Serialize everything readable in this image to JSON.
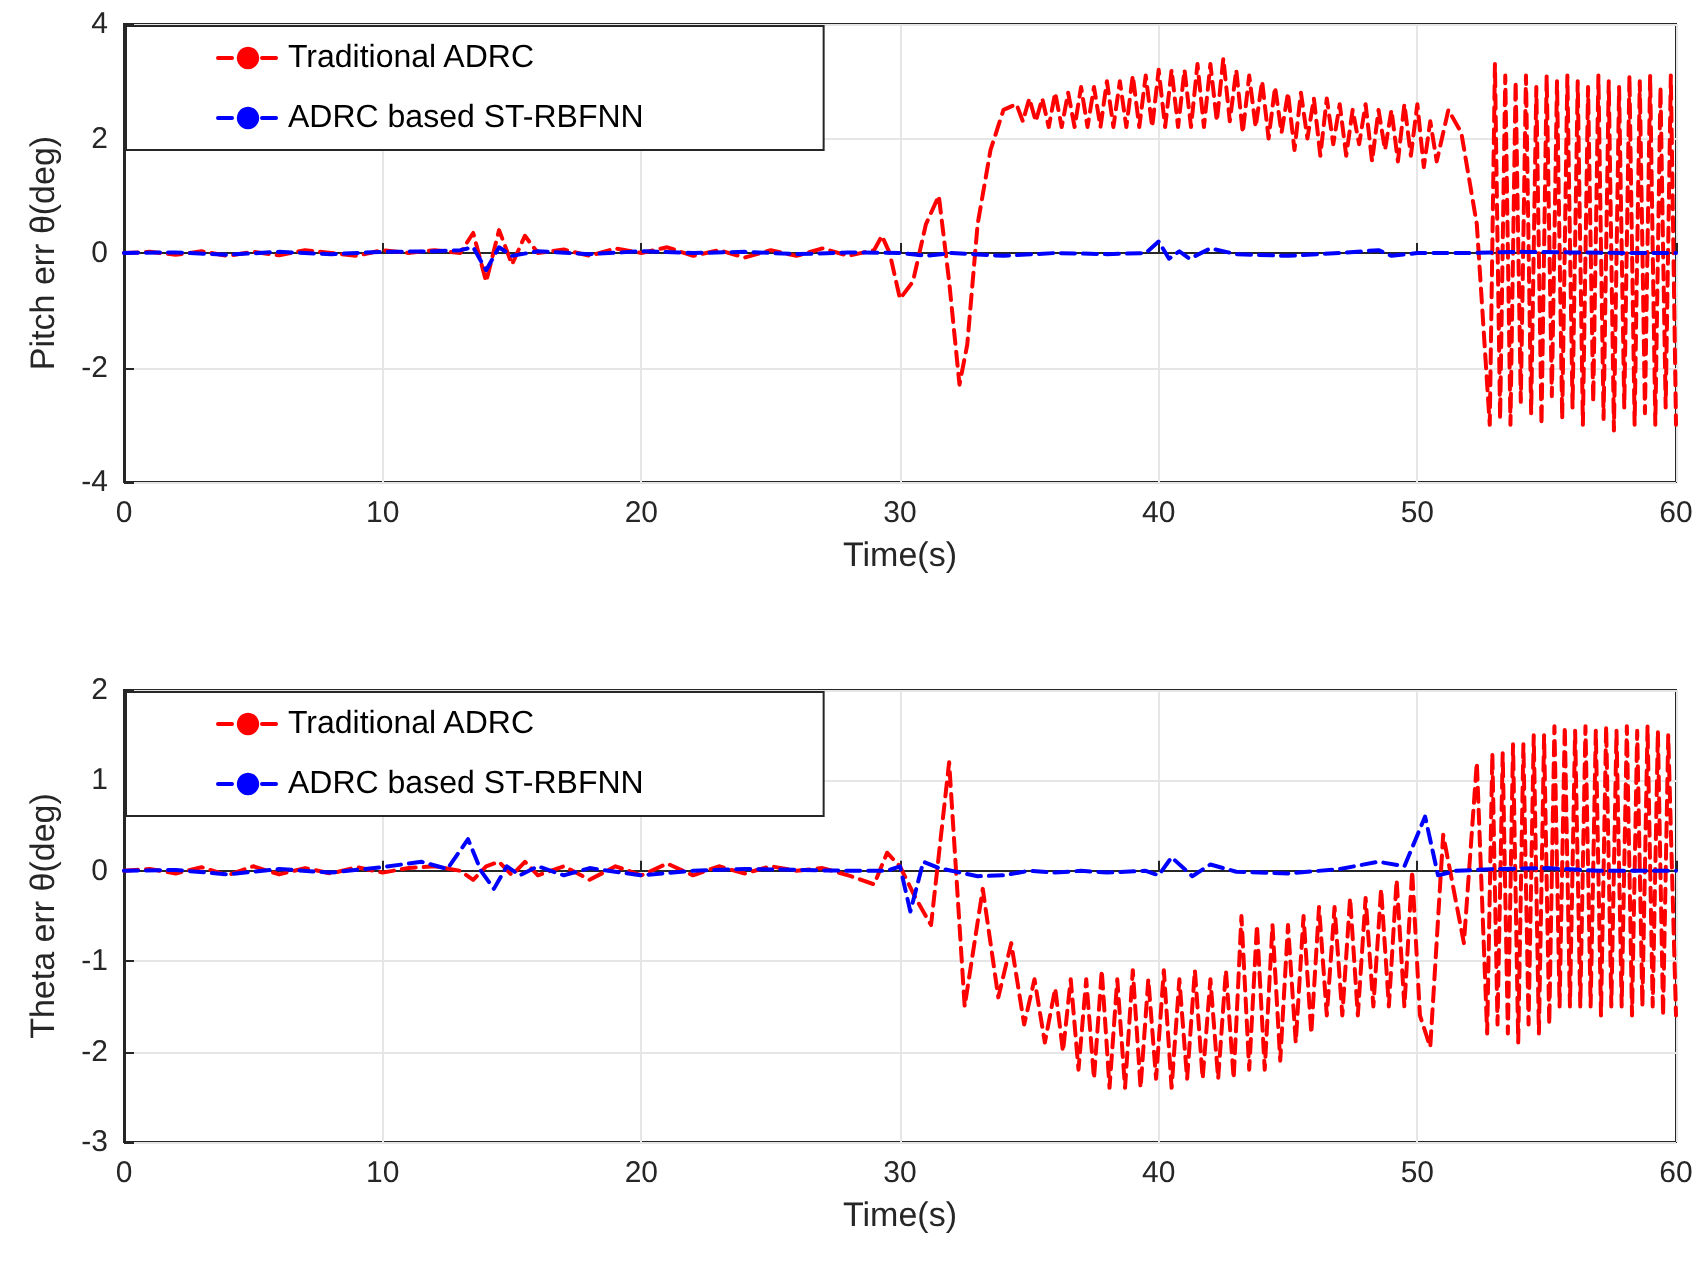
{
  "chart_data": [
    {
      "type": "line",
      "xlabel": "Time(s)",
      "ylabel": "Pitch err θ(deg)",
      "xlim": [
        0,
        60
      ],
      "xticks": [
        0,
        10,
        20,
        30,
        40,
        50,
        60
      ],
      "ylim": [
        -4,
        4
      ],
      "yticks": [
        -4,
        -2,
        0,
        2,
        4
      ],
      "grid": true,
      "legend": "top left",
      "marker": "none",
      "series": [
        {
          "name": "Traditional ADRC",
          "color": "#ff0000",
          "line_style": "dashed",
          "x": [
            0,
            1,
            2,
            3,
            4,
            5,
            6,
            7,
            8,
            9,
            10,
            11,
            12,
            13,
            13.5,
            14,
            14.5,
            15,
            15.5,
            16,
            17,
            18,
            19,
            20,
            21,
            22,
            23,
            24,
            25,
            26,
            27,
            28,
            29,
            29.3,
            29.6,
            30,
            30.5,
            31,
            31.5,
            31.9,
            32.3,
            32.6,
            33,
            33.5,
            34,
            34.5,
            34.75,
            35,
            35.25,
            35.5,
            35.75,
            36,
            36.25,
            36.5,
            36.75,
            37,
            37.25,
            37.5,
            37.75,
            38,
            38.25,
            38.5,
            38.75,
            39,
            39.25,
            39.5,
            39.75,
            40,
            40.25,
            40.5,
            40.75,
            41,
            41.25,
            41.5,
            41.75,
            42,
            42.25,
            42.5,
            42.75,
            43,
            43.25,
            43.5,
            43.75,
            44,
            44.25,
            44.5,
            44.75,
            45,
            45.25,
            45.5,
            45.75,
            46,
            46.25,
            46.5,
            46.75,
            47,
            47.25,
            47.5,
            47.75,
            48,
            48.25,
            48.5,
            48.75,
            49,
            49.25,
            49.5,
            49.75,
            50,
            50.25,
            50.5,
            50.75,
            51.2,
            51.7,
            52.3,
            52.8,
            53,
            53.2,
            53.4,
            53.6,
            53.8,
            54,
            54.2,
            54.4,
            54.6,
            54.8,
            55,
            55.2,
            55.4,
            55.6,
            55.8,
            56,
            56.2,
            56.4,
            56.6,
            56.8,
            57,
            57.2,
            57.4,
            57.6,
            57.8,
            58,
            58.2,
            58.4,
            58.6,
            58.8,
            59,
            59.2,
            59.4,
            59.6,
            59.8,
            60
          ],
          "values": [
            0,
            0.02,
            -0.03,
            0.03,
            -0.05,
            0.02,
            -0.04,
            0.05,
            0,
            -0.05,
            0.05,
            0,
            0.05,
            0,
            0.35,
            -0.5,
            0.4,
            -0.2,
            0.3,
            0,
            0.06,
            -0.05,
            0.08,
            0,
            0.1,
            -0.05,
            0.05,
            -0.08,
            0.05,
            -0.05,
            0.08,
            -0.05,
            0.05,
            0.3,
            0,
            -0.8,
            -0.5,
            0.5,
            1.0,
            -0.5,
            -2.3,
            -1.6,
            0.5,
            1.8,
            2.5,
            2.6,
            2.3,
            2.7,
            2.3,
            2.7,
            2.2,
            2.8,
            2.2,
            2.8,
            2.2,
            2.9,
            2.2,
            2.9,
            2.2,
            3.0,
            2.2,
            3.0,
            2.2,
            3.1,
            2.2,
            3.1,
            2.2,
            3.2,
            2.2,
            3.2,
            2.2,
            3.2,
            2.2,
            3.3,
            2.2,
            3.3,
            2.3,
            3.4,
            2.3,
            3.2,
            2.1,
            3.1,
            2.2,
            3.0,
            2.0,
            2.9,
            2.1,
            2.8,
            1.8,
            2.8,
            2.0,
            2.7,
            1.7,
            2.7,
            1.9,
            2.6,
            1.7,
            2.5,
            1.9,
            2.6,
            1.6,
            2.5,
            1.8,
            2.5,
            1.6,
            2.6,
            1.7,
            2.6,
            1.5,
            2.3,
            1.6,
            2.5,
            2.1,
            0.5,
            -3.0,
            3.3,
            -2.9,
            3.1,
            -3.0,
            3.0,
            -2.6,
            3.1,
            -2.8,
            2.9,
            -3.0,
            3.1,
            -2.5,
            3.0,
            -2.9,
            3.1,
            -2.7,
            3.0,
            -3.0,
            2.9,
            -2.6,
            3.1,
            -2.9,
            3.0,
            -3.1,
            2.9,
            -2.7,
            3.1,
            -3.0,
            3.0,
            -2.8,
            3.1,
            -3.0,
            2.9,
            -2.7,
            3.1,
            -3.0
          ]
        },
        {
          "name": "ADRC based ST-RBFNN",
          "color": "#0000ff",
          "line_style": "dashed",
          "x": [
            0,
            2,
            4,
            6,
            8,
            10,
            12,
            13,
            13.5,
            14,
            14.5,
            15,
            16,
            18,
            20,
            22,
            24,
            26,
            28,
            30,
            31,
            32,
            34,
            36,
            38,
            39.5,
            40,
            40.4,
            40.8,
            41.2,
            42,
            43,
            45,
            47,
            48.5,
            49,
            50,
            52,
            54,
            56,
            58,
            60
          ],
          "values": [
            0,
            0.01,
            -0.03,
            0.02,
            -0.02,
            0.02,
            0.03,
            0.05,
            0.1,
            -0.3,
            0.1,
            -0.05,
            0.03,
            -0.02,
            0.03,
            0,
            0.02,
            -0.02,
            0.01,
            0,
            -0.05,
            0,
            -0.05,
            0,
            -0.02,
            0,
            0.2,
            -0.1,
            0.03,
            -0.1,
            0.08,
            -0.02,
            -0.05,
            0,
            0.05,
            -0.05,
            0,
            0,
            0.02,
            0.01,
            0,
            0
          ]
        }
      ]
    },
    {
      "type": "line",
      "xlabel": "Time(s)",
      "ylabel": "Theta err θ(deg)",
      "xlim": [
        0,
        60
      ],
      "xticks": [
        0,
        10,
        20,
        30,
        40,
        50,
        60
      ],
      "ylim": [
        -3,
        2
      ],
      "yticks": [
        -3,
        -2,
        -1,
        0,
        1,
        2
      ],
      "grid": true,
      "legend": "top left",
      "marker": "none",
      "series": [
        {
          "name": "Traditional ADRC",
          "color": "#ff0000",
          "line_style": "dashed",
          "x": [
            0,
            1,
            2,
            3,
            4,
            5,
            6,
            7,
            8,
            9,
            10,
            11,
            12,
            13,
            13.5,
            14,
            14.5,
            15,
            15.5,
            16,
            17,
            18,
            19,
            20,
            21,
            22,
            23,
            24,
            25,
            26,
            27,
            28,
            29,
            29.5,
            30,
            30.6,
            31.2,
            31.9,
            32.5,
            33.2,
            33.8,
            34.3,
            34.8,
            35.2,
            35.6,
            36,
            36.3,
            36.6,
            36.9,
            37.2,
            37.5,
            37.8,
            38.1,
            38.4,
            38.7,
            39,
            39.3,
            39.6,
            39.9,
            40.2,
            40.5,
            40.8,
            41.1,
            41.4,
            41.7,
            42,
            42.3,
            42.6,
            42.9,
            43.2,
            43.5,
            43.8,
            44.1,
            44.4,
            44.7,
            45,
            45.3,
            45.6,
            45.9,
            46.2,
            46.5,
            46.8,
            47.1,
            47.4,
            47.7,
            48,
            48.3,
            48.6,
            48.9,
            49.2,
            49.5,
            49.8,
            50.1,
            50.5,
            51,
            51.8,
            52.3,
            52.7,
            52.9,
            53.1,
            53.3,
            53.5,
            53.7,
            53.9,
            54.1,
            54.3,
            54.5,
            54.7,
            54.9,
            55.1,
            55.3,
            55.5,
            55.7,
            55.9,
            56.1,
            56.3,
            56.5,
            56.7,
            56.9,
            57.1,
            57.3,
            57.5,
            57.7,
            57.9,
            58.1,
            58.3,
            58.5,
            58.7,
            58.9,
            59.1,
            59.3,
            59.5,
            59.7,
            60
          ],
          "values": [
            0,
            0.02,
            -0.03,
            0.04,
            -0.05,
            0.05,
            -0.04,
            0.03,
            -0.03,
            0.04,
            -0.02,
            0.03,
            0.05,
            0,
            -0.1,
            0.05,
            0.1,
            -0.05,
            0.1,
            -0.05,
            0.05,
            -0.1,
            0.05,
            -0.05,
            0.08,
            -0.05,
            0.05,
            -0.03,
            0.05,
            0,
            0.03,
            -0.05,
            -0.15,
            0.2,
            0.05,
            -0.3,
            -0.6,
            1.2,
            -1.5,
            -0.2,
            -1.4,
            -0.8,
            -1.7,
            -1.2,
            -1.9,
            -1.3,
            -2.0,
            -1.2,
            -2.2,
            -1.2,
            -2.3,
            -1.1,
            -2.4,
            -1.2,
            -2.4,
            -1.1,
            -2.4,
            -1.2,
            -2.3,
            -1.1,
            -2.4,
            -1.2,
            -2.3,
            -1.1,
            -2.3,
            -1.2,
            -2.3,
            -1.1,
            -2.3,
            -0.5,
            -2.2,
            -0.6,
            -2.2,
            -0.6,
            -2.1,
            -0.6,
            -1.9,
            -0.5,
            -1.8,
            -0.4,
            -1.6,
            -0.4,
            -1.6,
            -0.3,
            -1.6,
            -0.3,
            -1.5,
            -0.2,
            -1.5,
            -0.1,
            -1.5,
            0,
            -1.6,
            -1.95,
            0.4,
            -0.8,
            1.2,
            -1.8,
            1.3,
            -1.7,
            1.3,
            -1.8,
            1.4,
            -1.9,
            1.4,
            -1.7,
            1.5,
            -1.8,
            1.5,
            -1.7,
            1.6,
            -1.5,
            1.6,
            -1.5,
            1.55,
            -1.5,
            1.6,
            -1.5,
            1.55,
            -1.6,
            1.6,
            -1.5,
            1.55,
            -1.5,
            1.6,
            -1.6,
            1.55,
            -1.5,
            1.6,
            -1.5,
            1.55,
            -1.6,
            1.5,
            -1.6
          ]
        },
        {
          "name": "ADRC based ST-RBFNN",
          "color": "#0000ff",
          "line_style": "dashed",
          "x": [
            0,
            2,
            4,
            6,
            8,
            10,
            11.5,
            12.5,
            13.3,
            13.8,
            14.3,
            14.8,
            15.3,
            16,
            17,
            18,
            20,
            22,
            24,
            26,
            28,
            29.5,
            30,
            30.4,
            30.9,
            31.5,
            33,
            34,
            35,
            36,
            37,
            38,
            39.5,
            40,
            40.5,
            41.3,
            42,
            43,
            45,
            47,
            48.5,
            49.5,
            50.3,
            50.8,
            51.5,
            53,
            55,
            57,
            60
          ],
          "values": [
            0,
            0.01,
            -0.04,
            0.02,
            -0.02,
            0.04,
            0.1,
            0.02,
            0.35,
            0,
            -0.2,
            0.05,
            -0.05,
            0.05,
            -0.05,
            0.03,
            -0.05,
            0,
            0.02,
            0.01,
            0,
            0,
            0.05,
            -0.45,
            0.1,
            0.03,
            -0.06,
            -0.05,
            0,
            -0.02,
            0,
            -0.02,
            0,
            -0.05,
            0.15,
            -0.06,
            0.07,
            -0.01,
            -0.03,
            0.02,
            0.1,
            0.05,
            0.6,
            -0.05,
            0,
            0.02,
            0.03,
            0,
            0
          ]
        }
      ]
    }
  ]
}
